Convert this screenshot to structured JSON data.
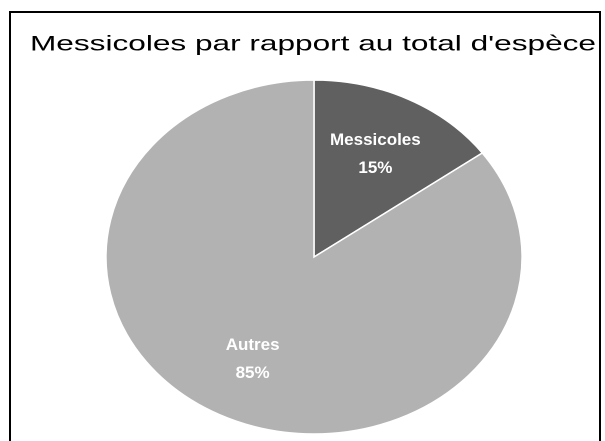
{
  "chart_data": {
    "type": "pie",
    "title": "Messicoles par rapport au total d'espèce",
    "categories": [
      "Messicoles",
      "Autres"
    ],
    "values": [
      15,
      85
    ],
    "value_labels": [
      "15%",
      "85%"
    ],
    "colors": [
      "#606060",
      "#b2b2b2"
    ]
  }
}
